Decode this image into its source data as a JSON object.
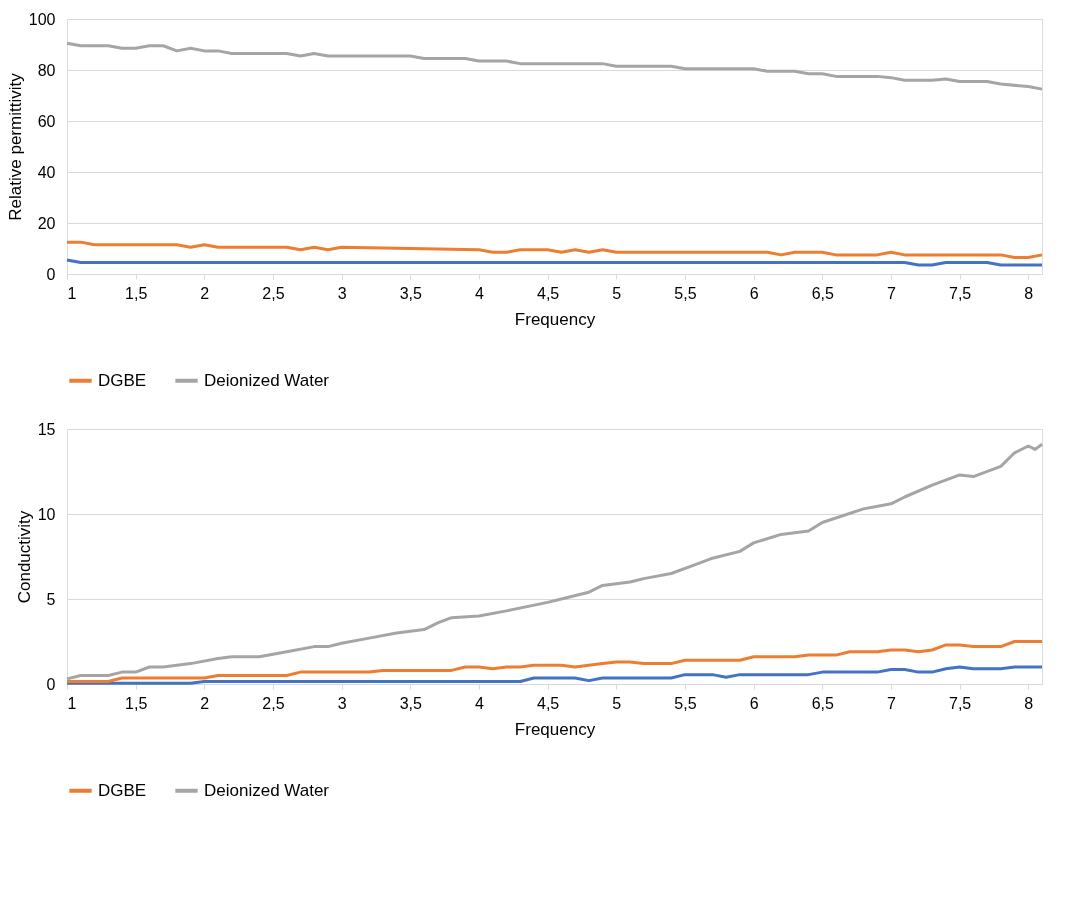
{
  "chart_data": [
    {
      "type": "line",
      "xlabel": "Frequency",
      "ylabel": "Relative permittivity",
      "xlim": [
        1,
        8.1
      ],
      "xticks": [
        1,
        {
          "value": 1.5,
          "label": "1,5"
        },
        2,
        {
          "value": 2.5,
          "label": "2,5"
        },
        3,
        {
          "value": 3.5,
          "label": "3,5"
        },
        4,
        {
          "value": 4.5,
          "label": "4,5"
        },
        5,
        {
          "value": 5.5,
          "label": "5,5"
        },
        6,
        {
          "value": 6.5,
          "label": "6,5"
        },
        7,
        {
          "value": 7.5,
          "label": "7,5"
        },
        8
      ],
      "ylim": [
        0,
        100
      ],
      "yticks": [
        0,
        20,
        40,
        60,
        80,
        100
      ],
      "grid": "y",
      "legend": "bottom",
      "marker": "none",
      "line_style": "solid",
      "series": [
        {
          "color": "#4472c4",
          "x": [
            1,
            1.1,
            7.1,
            7.2,
            7.3,
            7.4,
            7.7,
            7.8,
            8.1
          ],
          "values": [
            5.5,
            4.5,
            4.5,
            3.5,
            3.5,
            4.5,
            4.5,
            3.5,
            3.5
          ]
        },
        {
          "name": "DGBE",
          "color": "#ed7d31",
          "x": [
            1,
            1.1,
            1.2,
            1.8,
            1.9,
            2.0,
            2.1,
            2.6,
            2.7,
            2.8,
            2.9,
            3.0,
            4.0,
            4.1,
            4.2,
            4.3,
            4.5,
            4.6,
            4.7,
            4.8,
            4.9,
            5.0,
            6.1,
            6.2,
            6.3,
            6.5,
            6.6,
            6.9,
            7.0,
            7.1,
            7.8,
            7.9,
            8.0,
            8.1
          ],
          "values": [
            12.5,
            12.5,
            11.5,
            11.5,
            10.5,
            11.5,
            10.5,
            10.5,
            9.5,
            10.5,
            9.5,
            10.5,
            9.5,
            8.5,
            8.5,
            9.5,
            9.5,
            8.5,
            9.5,
            8.5,
            9.5,
            8.5,
            8.5,
            7.5,
            8.5,
            8.5,
            7.5,
            7.5,
            8.5,
            7.5,
            7.5,
            6.5,
            6.5,
            7.5
          ]
        },
        {
          "name": "Deionized Water",
          "color": "#a5a5a5",
          "x": [
            1,
            1.1,
            1.3,
            1.4,
            1.5,
            1.6,
            1.7,
            1.8,
            1.9,
            2.0,
            2.1,
            2.2,
            2.6,
            2.7,
            2.8,
            2.9,
            3.0,
            3.5,
            3.6,
            3.9,
            4.0,
            4.2,
            4.3,
            4.9,
            5.0,
            5.4,
            5.5,
            6.0,
            6.1,
            6.3,
            6.4,
            6.5,
            6.6,
            6.9,
            7.0,
            7.1,
            7.3,
            7.4,
            7.5,
            7.7,
            7.8,
            8.0,
            8.1
          ],
          "values": [
            90.5,
            89.5,
            89.5,
            88.5,
            88.5,
            89.5,
            89.5,
            87.5,
            88.5,
            87.5,
            87.5,
            86.5,
            86.5,
            85.5,
            86.5,
            85.5,
            85.5,
            85.5,
            84.5,
            84.5,
            83.5,
            83.5,
            82.5,
            82.5,
            81.5,
            81.5,
            80.5,
            80.5,
            79.5,
            79.5,
            78.5,
            78.5,
            77.5,
            77.5,
            77,
            76,
            76,
            76.5,
            75.5,
            75.5,
            74.5,
            73.5,
            72.5
          ]
        }
      ]
    },
    {
      "type": "line",
      "xlabel": "Frequency",
      "ylabel": "Conductivity",
      "xlim": [
        1,
        8.1
      ],
      "xticks": [
        1,
        {
          "value": 1.5,
          "label": "1,5"
        },
        2,
        {
          "value": 2.5,
          "label": "2,5"
        },
        3,
        {
          "value": 3.5,
          "label": "3,5"
        },
        4,
        {
          "value": 4.5,
          "label": "4,5"
        },
        5,
        {
          "value": 5.5,
          "label": "5,5"
        },
        6,
        {
          "value": 6.5,
          "label": "6,5"
        },
        7,
        {
          "value": 7.5,
          "label": "7,5"
        },
        8
      ],
      "ylim": [
        0,
        15
      ],
      "yticks": [
        0,
        5,
        10,
        15
      ],
      "grid": "y",
      "legend": "bottom",
      "marker": "none",
      "line_style": "solid",
      "series": [
        {
          "color": "#4472c4",
          "x": [
            1,
            1.9,
            2.0,
            4.3,
            4.4,
            4.7,
            4.8,
            4.9,
            5.4,
            5.5,
            5.7,
            5.8,
            5.9,
            6.4,
            6.5,
            6.9,
            7.0,
            7.1,
            7.2,
            7.3,
            7.4,
            7.5,
            7.6,
            7.8,
            7.9,
            8.1
          ],
          "values": [
            0.05,
            0.05,
            0.15,
            0.15,
            0.35,
            0.35,
            0.2,
            0.35,
            0.35,
            0.55,
            0.55,
            0.4,
            0.55,
            0.55,
            0.7,
            0.7,
            0.85,
            0.85,
            0.7,
            0.7,
            0.9,
            1.0,
            0.9,
            0.9,
            1.0,
            1.0
          ]
        },
        {
          "name": "DGBE",
          "color": "#ed7d31",
          "x": [
            1,
            1.3,
            1.4,
            2.0,
            2.1,
            2.6,
            2.7,
            3.2,
            3.3,
            3.8,
            3.9,
            4.0,
            4.1,
            4.2,
            4.3,
            4.4,
            4.6,
            4.7,
            4.8,
            4.9,
            5.0,
            5.1,
            5.2,
            5.4,
            5.5,
            5.9,
            6.0,
            6.3,
            6.4,
            6.6,
            6.7,
            6.9,
            7.0,
            7.1,
            7.2,
            7.3,
            7.4,
            7.5,
            7.6,
            7.8,
            7.9,
            8.1
          ],
          "values": [
            0.15,
            0.15,
            0.35,
            0.35,
            0.5,
            0.5,
            0.7,
            0.7,
            0.8,
            0.8,
            1.0,
            1.0,
            0.9,
            1.0,
            1.0,
            1.1,
            1.1,
            1.0,
            1.1,
            1.2,
            1.3,
            1.3,
            1.2,
            1.2,
            1.4,
            1.4,
            1.6,
            1.6,
            1.7,
            1.7,
            1.9,
            1.9,
            2.0,
            2.0,
            1.9,
            2.0,
            2.3,
            2.3,
            2.2,
            2.2,
            2.5,
            2.5
          ]
        },
        {
          "name": "Deionized Water",
          "color": "#a5a5a5",
          "x": [
            1,
            1.1,
            1.3,
            1.4,
            1.5,
            1.6,
            1.7,
            1.9,
            2.1,
            2.2,
            2.4,
            2.6,
            2.8,
            2.9,
            3.0,
            3.2,
            3.4,
            3.6,
            3.7,
            3.8,
            4.0,
            4.2,
            4.5,
            4.6,
            4.8,
            4.9,
            5.1,
            5.2,
            5.4,
            5.6,
            5.7,
            5.9,
            6.0,
            6.2,
            6.4,
            6.5,
            6.8,
            7.0,
            7.1,
            7.3,
            7.5,
            7.6,
            7.8,
            7.9,
            8.0,
            8.05,
            8.1
          ],
          "values": [
            0.3,
            0.5,
            0.5,
            0.7,
            0.7,
            1.0,
            1.0,
            1.2,
            1.5,
            1.6,
            1.6,
            1.9,
            2.2,
            2.2,
            2.4,
            2.7,
            3.0,
            3.2,
            3.6,
            3.9,
            4.0,
            4.3,
            4.8,
            5.0,
            5.4,
            5.8,
            6.0,
            6.2,
            6.5,
            7.1,
            7.4,
            7.8,
            8.3,
            8.8,
            9.0,
            9.5,
            10.3,
            10.6,
            11.0,
            11.7,
            12.3,
            12.2,
            12.8,
            13.6,
            14.0,
            13.8,
            14.1
          ]
        }
      ]
    }
  ]
}
